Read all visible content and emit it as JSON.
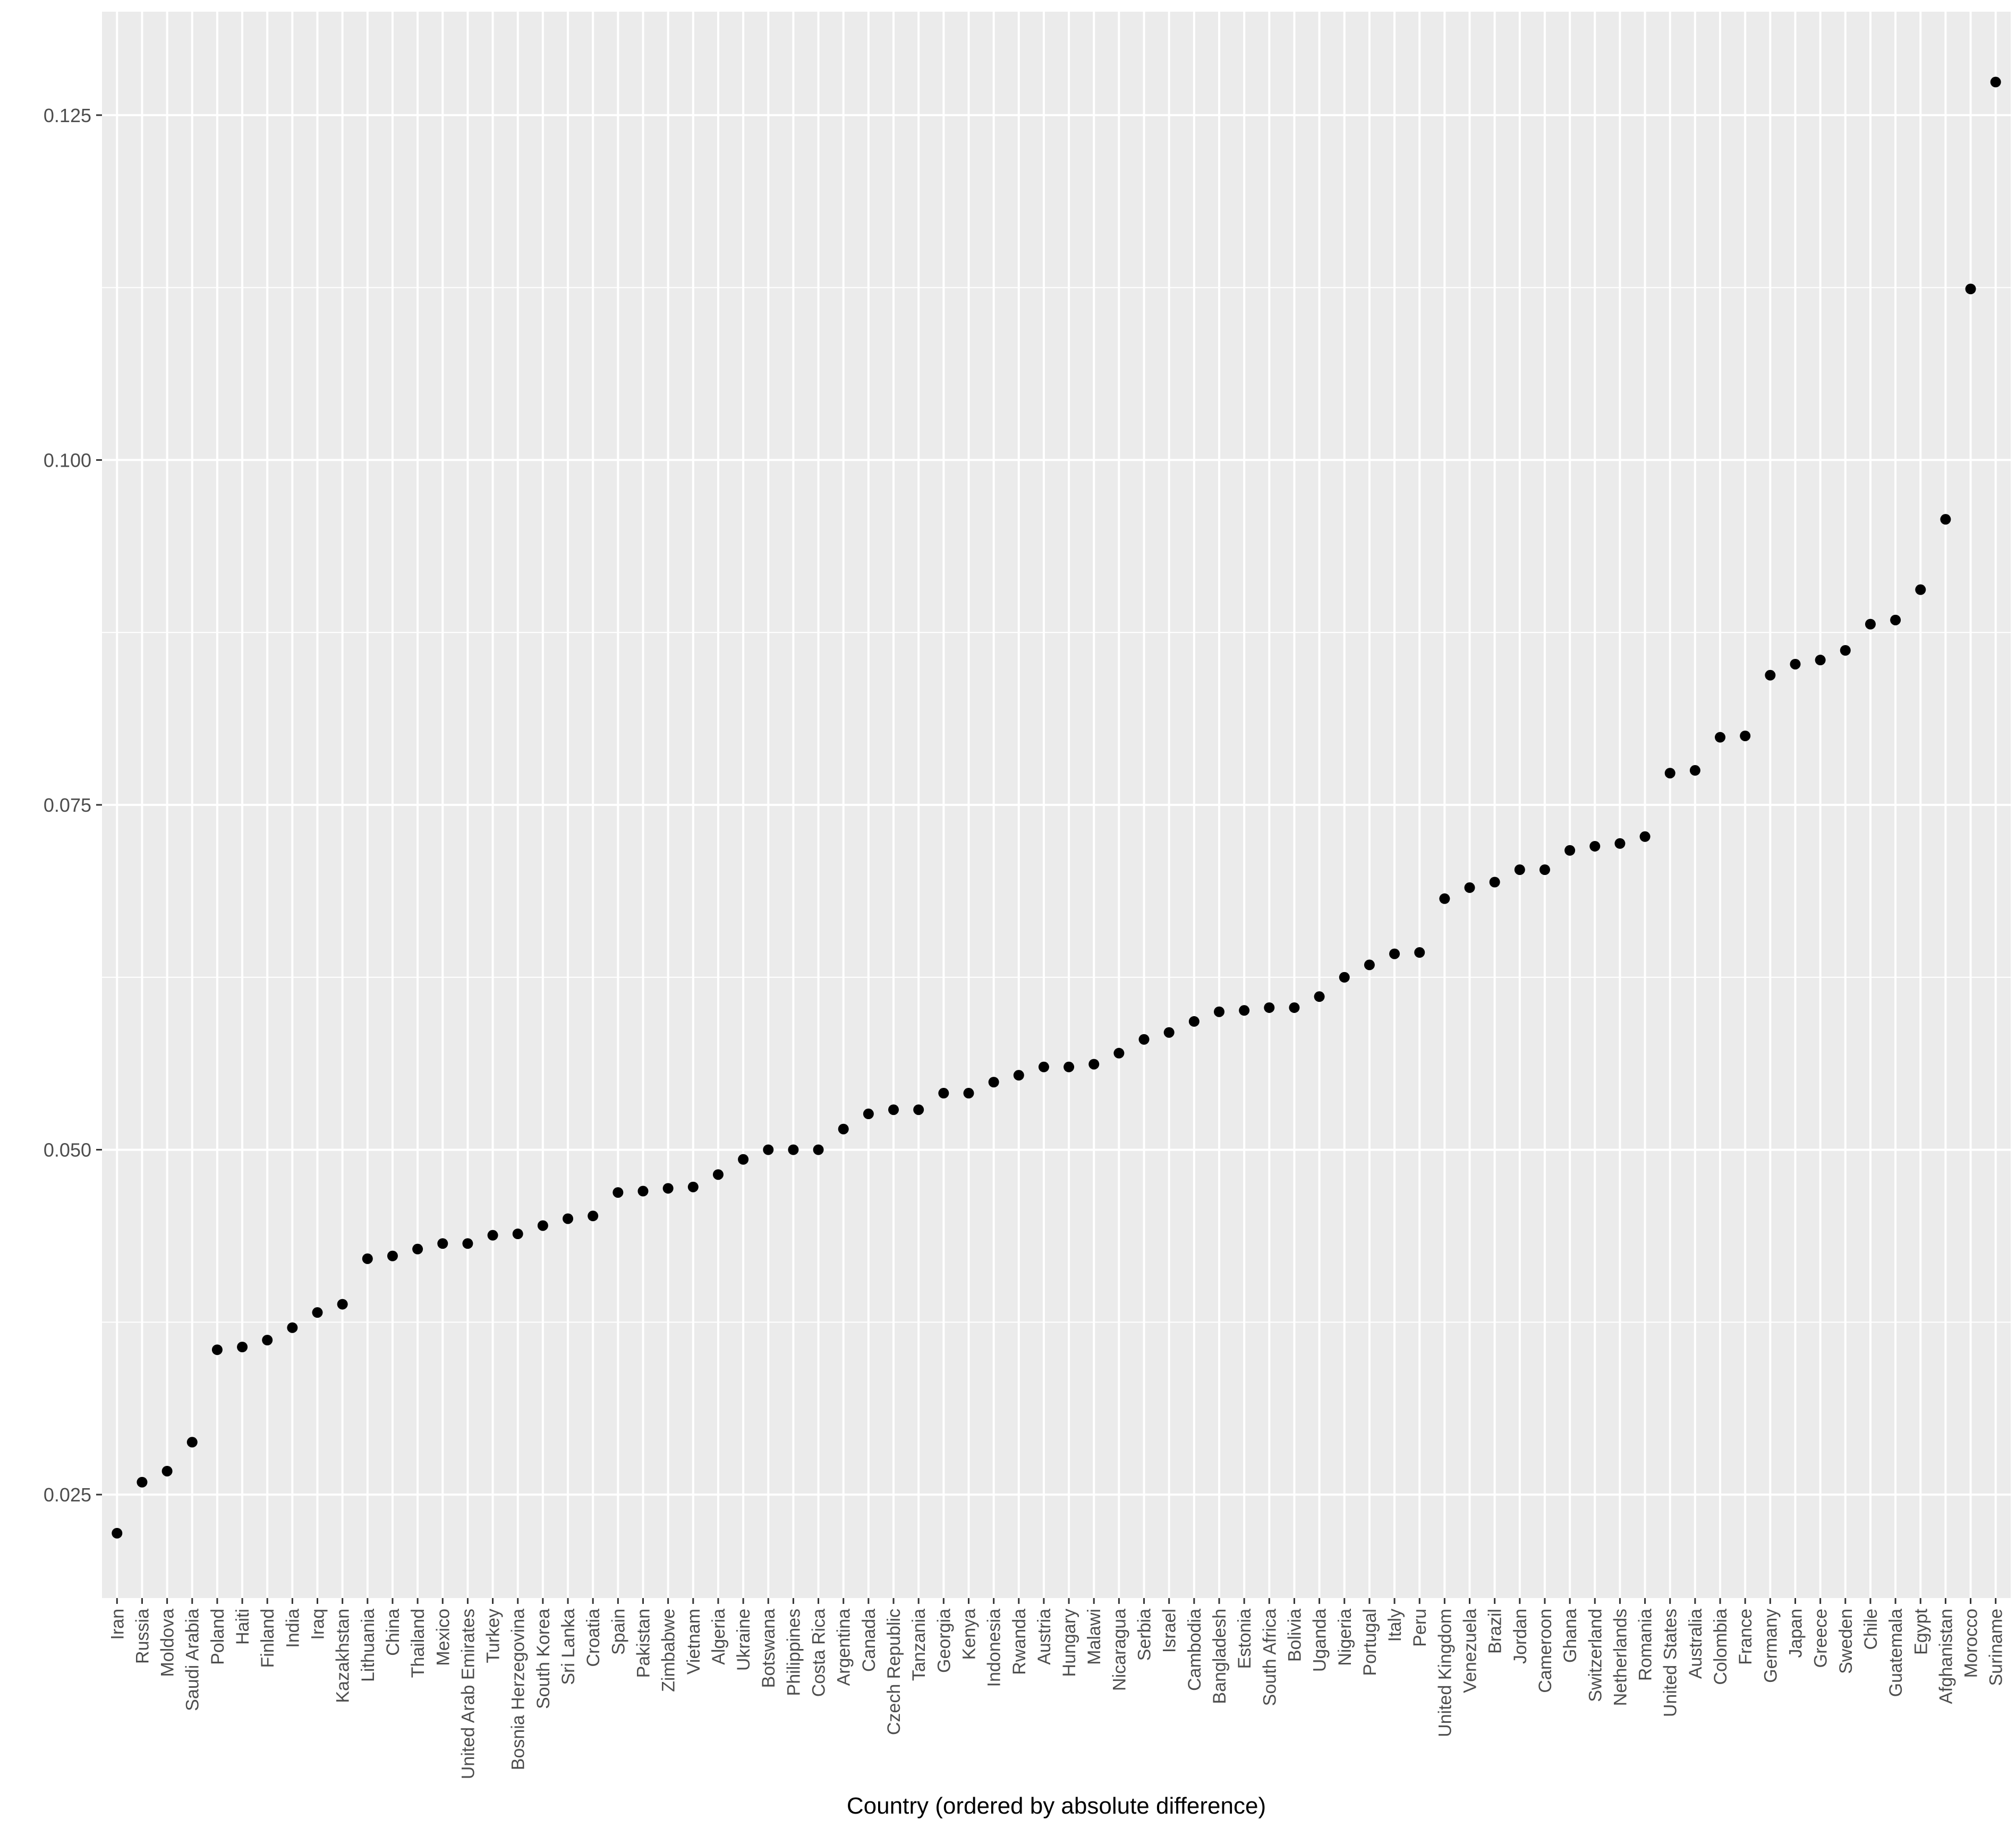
{
  "chart_data": {
    "type": "scatter",
    "title": "",
    "xlabel": "Country (ordered by absolute difference)",
    "ylabel": "",
    "ylim": [
      0.0175,
      0.1325
    ],
    "yticks": [
      0.025,
      0.05,
      0.075,
      0.1,
      0.125
    ],
    "ytick_labels": [
      "0.025",
      "0.050",
      "0.075",
      "0.100",
      "0.125"
    ],
    "grid": true,
    "legend": "none",
    "colors": {
      "panel": "#EBEBEB",
      "grid": "#FFFFFF",
      "point": "#000000",
      "tick_text": "#4D4D4D"
    },
    "categories": [
      "Iran",
      "Russia",
      "Moldova",
      "Saudi Arabia",
      "Poland",
      "Haiti",
      "Finland",
      "India",
      "Iraq",
      "Kazakhstan",
      "Lithuania",
      "China",
      "Thailand",
      "Mexico",
      "United Arab Emirates",
      "Turkey",
      "Bosnia Herzegovina",
      "South Korea",
      "Sri Lanka",
      "Croatia",
      "Spain",
      "Pakistan",
      "Zimbabwe",
      "Vietnam",
      "Algeria",
      "Ukraine",
      "Botswana",
      "Philippines",
      "Costa Rica",
      "Argentina",
      "Canada",
      "Czech Republic",
      "Tanzania",
      "Georgia",
      "Kenya",
      "Indonesia",
      "Rwanda",
      "Austria",
      "Hungary",
      "Malawi",
      "Nicaragua",
      "Serbia",
      "Israel",
      "Cambodia",
      "Bangladesh",
      "Estonia",
      "South Africa",
      "Bolivia",
      "Uganda",
      "Nigeria",
      "Portugal",
      "Italy",
      "Peru",
      "United Kingdom",
      "Venezuela",
      "Brazil",
      "Jordan",
      "Cameroon",
      "Ghana",
      "Switzerland",
      "Netherlands",
      "Romania",
      "United States",
      "Australia",
      "Colombia",
      "France",
      "Germany",
      "Japan",
      "Greece",
      "Sweden",
      "Chile",
      "Guatemala",
      "Egypt",
      "Afghanistan",
      "Morocco",
      "Suriname"
    ],
    "values": [
      0.0222,
      0.0259,
      0.0267,
      0.0288,
      0.0355,
      0.0357,
      0.0362,
      0.0371,
      0.0382,
      0.0388,
      0.0421,
      0.0423,
      0.0428,
      0.0432,
      0.0432,
      0.0438,
      0.0439,
      0.0445,
      0.045,
      0.0452,
      0.0469,
      0.047,
      0.0472,
      0.0473,
      0.0482,
      0.0493,
      0.05,
      0.05,
      0.05,
      0.0515,
      0.0526,
      0.0529,
      0.0529,
      0.0541,
      0.0541,
      0.0549,
      0.0554,
      0.056,
      0.056,
      0.0562,
      0.057,
      0.058,
      0.0585,
      0.0593,
      0.06,
      0.0601,
      0.0603,
      0.0603,
      0.0611,
      0.0625,
      0.0634,
      0.0642,
      0.0643,
      0.0682,
      0.069,
      0.0694,
      0.0703,
      0.0703,
      0.0717,
      0.072,
      0.0722,
      0.0727,
      0.0773,
      0.0775,
      0.0799,
      0.08,
      0.0844,
      0.0852,
      0.0855,
      0.0862,
      0.0881,
      0.0884,
      0.0906,
      0.0957,
      0.1124,
      0.1274
    ]
  }
}
